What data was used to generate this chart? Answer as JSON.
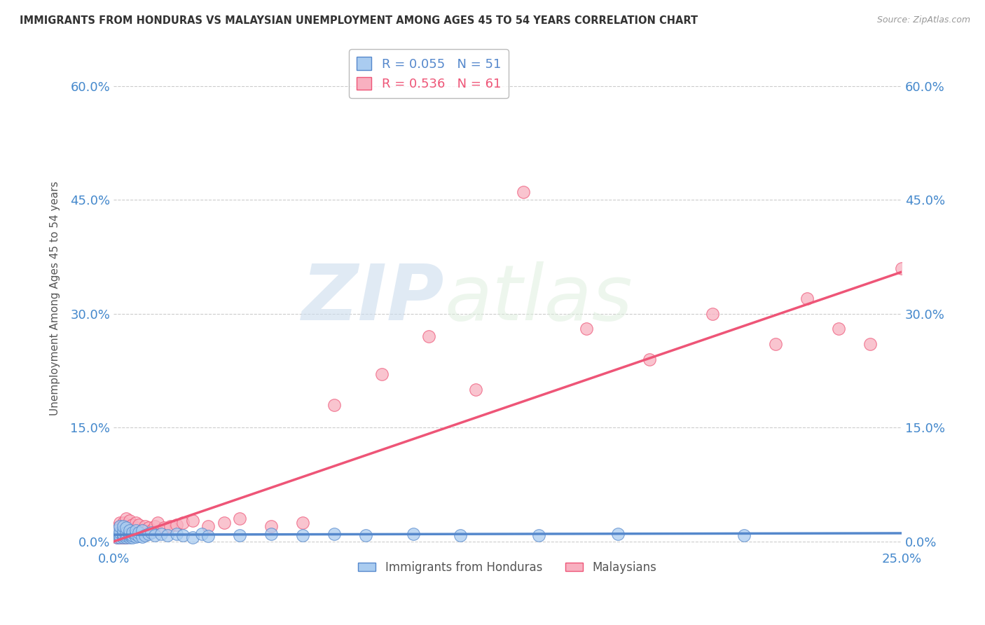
{
  "title": "IMMIGRANTS FROM HONDURAS VS MALAYSIAN UNEMPLOYMENT AMONG AGES 45 TO 54 YEARS CORRELATION CHART",
  "source": "Source: ZipAtlas.com",
  "ylabel": "Unemployment Among Ages 45 to 54 years",
  "xlim": [
    0.0,
    0.25
  ],
  "ylim": [
    -0.01,
    0.65
  ],
  "xticks": [
    0.0,
    0.05,
    0.1,
    0.15,
    0.2,
    0.25
  ],
  "xtick_labels": [
    "0.0%",
    "",
    "",
    "",
    "",
    "25.0%"
  ],
  "ytick_labels": [
    "0.0%",
    "15.0%",
    "30.0%",
    "45.0%",
    "60.0%"
  ],
  "yticks": [
    0.0,
    0.15,
    0.3,
    0.45,
    0.6
  ],
  "r_honduras": 0.055,
  "n_honduras": 51,
  "r_malaysians": 0.536,
  "n_malaysians": 61,
  "color_honduras": "#AACCF0",
  "color_malaysians": "#F8B0C0",
  "line_color_honduras": "#5588CC",
  "line_color_malaysians": "#EE5577",
  "legend_label_honduras": "Immigrants from Honduras",
  "legend_label_malaysians": "Malaysians",
  "honduras_x": [
    0.001,
    0.001,
    0.001,
    0.002,
    0.002,
    0.002,
    0.002,
    0.003,
    0.003,
    0.003,
    0.003,
    0.003,
    0.004,
    0.004,
    0.004,
    0.004,
    0.005,
    0.005,
    0.005,
    0.005,
    0.006,
    0.006,
    0.006,
    0.007,
    0.007,
    0.007,
    0.008,
    0.008,
    0.009,
    0.009,
    0.01,
    0.011,
    0.012,
    0.013,
    0.015,
    0.017,
    0.02,
    0.022,
    0.025,
    0.028,
    0.03,
    0.04,
    0.05,
    0.06,
    0.07,
    0.08,
    0.095,
    0.11,
    0.135,
    0.16,
    0.2
  ],
  "honduras_y": [
    0.005,
    0.01,
    0.015,
    0.005,
    0.008,
    0.012,
    0.02,
    0.005,
    0.008,
    0.01,
    0.015,
    0.02,
    0.005,
    0.008,
    0.012,
    0.018,
    0.005,
    0.008,
    0.01,
    0.015,
    0.005,
    0.008,
    0.012,
    0.006,
    0.01,
    0.015,
    0.007,
    0.012,
    0.006,
    0.015,
    0.008,
    0.01,
    0.012,
    0.008,
    0.01,
    0.008,
    0.01,
    0.008,
    0.005,
    0.01,
    0.007,
    0.008,
    0.01,
    0.008,
    0.01,
    0.008,
    0.01,
    0.008,
    0.008,
    0.01,
    0.008
  ],
  "malaysian_x": [
    0.001,
    0.001,
    0.001,
    0.001,
    0.002,
    0.002,
    0.002,
    0.002,
    0.002,
    0.003,
    0.003,
    0.003,
    0.003,
    0.003,
    0.004,
    0.004,
    0.004,
    0.004,
    0.004,
    0.005,
    0.005,
    0.005,
    0.005,
    0.006,
    0.006,
    0.006,
    0.007,
    0.007,
    0.007,
    0.008,
    0.008,
    0.009,
    0.01,
    0.01,
    0.011,
    0.012,
    0.013,
    0.014,
    0.016,
    0.018,
    0.02,
    0.022,
    0.025,
    0.03,
    0.035,
    0.04,
    0.05,
    0.06,
    0.07,
    0.085,
    0.1,
    0.115,
    0.13,
    0.15,
    0.17,
    0.19,
    0.21,
    0.22,
    0.23,
    0.24,
    0.25
  ],
  "malaysian_y": [
    0.005,
    0.008,
    0.012,
    0.018,
    0.005,
    0.01,
    0.015,
    0.02,
    0.025,
    0.005,
    0.008,
    0.012,
    0.018,
    0.025,
    0.005,
    0.01,
    0.015,
    0.02,
    0.03,
    0.008,
    0.012,
    0.02,
    0.028,
    0.008,
    0.015,
    0.022,
    0.01,
    0.018,
    0.025,
    0.012,
    0.022,
    0.015,
    0.01,
    0.02,
    0.018,
    0.015,
    0.02,
    0.025,
    0.018,
    0.02,
    0.022,
    0.025,
    0.028,
    0.02,
    0.025,
    0.03,
    0.02,
    0.025,
    0.18,
    0.22,
    0.27,
    0.2,
    0.46,
    0.28,
    0.24,
    0.3,
    0.26,
    0.32,
    0.28,
    0.26,
    0.36
  ],
  "trend_hon_x0": 0.0,
  "trend_hon_x1": 0.25,
  "trend_hon_y0": 0.009,
  "trend_hon_y1": 0.011,
  "trend_mal_x0": 0.0,
  "trend_mal_x1": 0.25,
  "trend_mal_y0": 0.0,
  "trend_mal_y1": 0.355
}
